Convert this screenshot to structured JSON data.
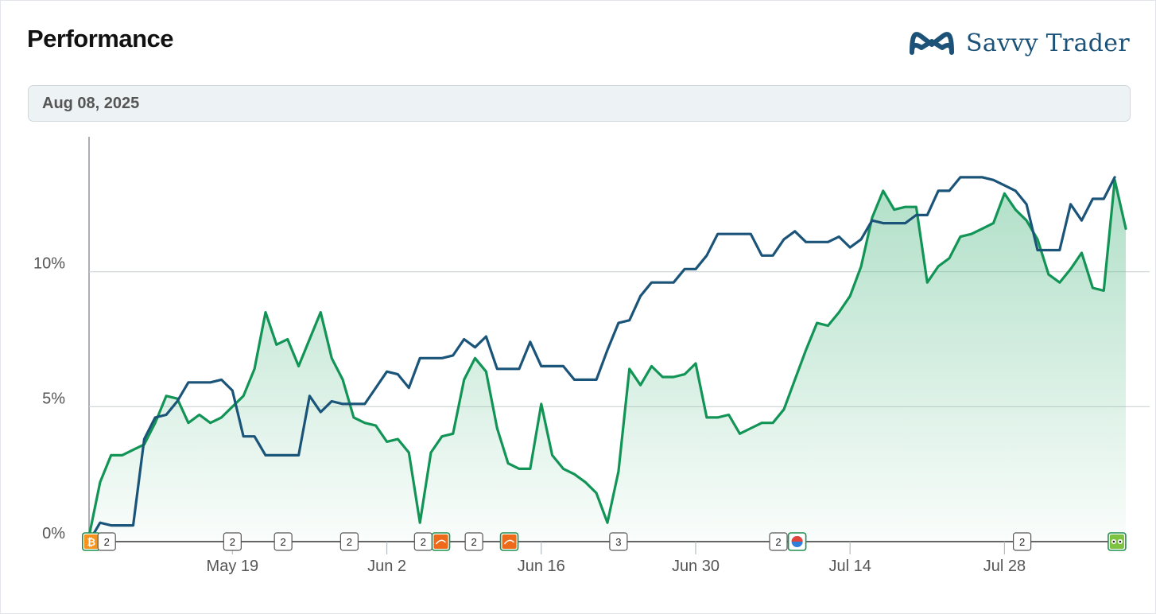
{
  "header": {
    "title": "Performance",
    "brand": "Savvy Trader"
  },
  "date_display": "Aug 08, 2025",
  "colors": {
    "portfolio": "#129456",
    "benchmark": "#1b5479",
    "fill": "#4fb883",
    "grid": "#cfd3d6",
    "brand": "#1d5278"
  },
  "chart_data": {
    "type": "line",
    "title": "",
    "xlabel": "",
    "ylabel": "",
    "x_ticks": [
      "May 19",
      "Jun 2",
      "Jun 16",
      "Jun 30",
      "Jul 14",
      "Jul 28"
    ],
    "y_ticks": [
      "0%",
      "5%",
      "10%"
    ],
    "ylim": [
      0,
      15
    ],
    "grid": true,
    "series": [
      {
        "id": "portfolio",
        "area": true,
        "points": [
          [
            0,
            0.2
          ],
          [
            1,
            2.2
          ],
          [
            2,
            3.2
          ],
          [
            3,
            3.2
          ],
          [
            4,
            3.4
          ],
          [
            5,
            3.6
          ],
          [
            6,
            4.4
          ],
          [
            7,
            5.4
          ],
          [
            8,
            5.3
          ],
          [
            9,
            4.4
          ],
          [
            10,
            4.7
          ],
          [
            11,
            4.4
          ],
          [
            12,
            4.6
          ],
          [
            13,
            5.0
          ],
          [
            14,
            5.4
          ],
          [
            15,
            6.4
          ],
          [
            16,
            8.5
          ],
          [
            17,
            7.3
          ],
          [
            18,
            7.5
          ],
          [
            19,
            6.5
          ],
          [
            20,
            7.5
          ],
          [
            21,
            8.5
          ],
          [
            22,
            6.8
          ],
          [
            23,
            6.0
          ],
          [
            24,
            4.6
          ],
          [
            25,
            4.4
          ],
          [
            26,
            4.3
          ],
          [
            27,
            3.7
          ],
          [
            28,
            3.8
          ],
          [
            29,
            3.3
          ],
          [
            30,
            0.7
          ],
          [
            31,
            3.3
          ],
          [
            32,
            3.9
          ],
          [
            33,
            4.0
          ],
          [
            34,
            6.0
          ],
          [
            35,
            6.8
          ],
          [
            36,
            6.3
          ],
          [
            37,
            4.2
          ],
          [
            38,
            2.9
          ],
          [
            39,
            2.7
          ],
          [
            40,
            2.7
          ],
          [
            41,
            5.1
          ],
          [
            42,
            3.2
          ],
          [
            43,
            2.7
          ],
          [
            44,
            2.5
          ],
          [
            45,
            2.2
          ],
          [
            46,
            1.8
          ],
          [
            47,
            0.7
          ],
          [
            48,
            2.6
          ],
          [
            49,
            6.4
          ],
          [
            50,
            5.8
          ],
          [
            51,
            6.5
          ],
          [
            52,
            6.1
          ],
          [
            53,
            6.1
          ],
          [
            54,
            6.2
          ],
          [
            55,
            6.6
          ],
          [
            56,
            4.6
          ],
          [
            57,
            4.6
          ],
          [
            58,
            4.7
          ],
          [
            59,
            4.0
          ],
          [
            60,
            4.2
          ],
          [
            61,
            4.4
          ],
          [
            62,
            4.4
          ],
          [
            63,
            4.9
          ],
          [
            64,
            6.0
          ],
          [
            65,
            7.1
          ],
          [
            66,
            8.1
          ],
          [
            67,
            8.0
          ],
          [
            68,
            8.5
          ],
          [
            69,
            9.1
          ],
          [
            70,
            10.2
          ],
          [
            71,
            12.0
          ],
          [
            72,
            13.0
          ],
          [
            73,
            12.3
          ],
          [
            74,
            12.4
          ],
          [
            75,
            12.4
          ],
          [
            76,
            9.6
          ],
          [
            77,
            10.2
          ],
          [
            78,
            10.5
          ],
          [
            79,
            11.3
          ],
          [
            80,
            11.4
          ],
          [
            81,
            11.6
          ],
          [
            82,
            11.8
          ],
          [
            83,
            12.9
          ],
          [
            84,
            12.3
          ],
          [
            85,
            11.9
          ],
          [
            86,
            11.2
          ],
          [
            87,
            9.9
          ],
          [
            88,
            9.6
          ],
          [
            89,
            10.1
          ],
          [
            90,
            10.7
          ],
          [
            91,
            9.4
          ],
          [
            92,
            9.3
          ],
          [
            93,
            13.4
          ],
          [
            94,
            11.6
          ]
        ]
      },
      {
        "id": "benchmark",
        "area": false,
        "points": [
          [
            0,
            0
          ],
          [
            1,
            0.7
          ],
          [
            2,
            0.6
          ],
          [
            3,
            0.6
          ],
          [
            4,
            0.6
          ],
          [
            5,
            3.8
          ],
          [
            6,
            4.6
          ],
          [
            7,
            4.7
          ],
          [
            8,
            5.2
          ],
          [
            9,
            5.9
          ],
          [
            10,
            5.9
          ],
          [
            11,
            5.9
          ],
          [
            12,
            6.0
          ],
          [
            13,
            5.6
          ],
          [
            14,
            3.9
          ],
          [
            15,
            3.9
          ],
          [
            16,
            3.2
          ],
          [
            17,
            3.2
          ],
          [
            18,
            3.2
          ],
          [
            19,
            3.2
          ],
          [
            20,
            5.4
          ],
          [
            21,
            4.8
          ],
          [
            22,
            5.2
          ],
          [
            23,
            5.1
          ],
          [
            24,
            5.1
          ],
          [
            25,
            5.1
          ],
          [
            26,
            5.7
          ],
          [
            27,
            6.3
          ],
          [
            28,
            6.2
          ],
          [
            29,
            5.7
          ],
          [
            30,
            6.8
          ],
          [
            31,
            6.8
          ],
          [
            32,
            6.8
          ],
          [
            33,
            6.9
          ],
          [
            34,
            7.5
          ],
          [
            35,
            7.2
          ],
          [
            36,
            7.6
          ],
          [
            37,
            6.4
          ],
          [
            38,
            6.4
          ],
          [
            39,
            6.4
          ],
          [
            40,
            7.4
          ],
          [
            41,
            6.5
          ],
          [
            42,
            6.5
          ],
          [
            43,
            6.5
          ],
          [
            44,
            6.0
          ],
          [
            45,
            6.0
          ],
          [
            46,
            6.0
          ],
          [
            47,
            7.1
          ],
          [
            48,
            8.1
          ],
          [
            49,
            8.2
          ],
          [
            50,
            9.1
          ],
          [
            51,
            9.6
          ],
          [
            52,
            9.6
          ],
          [
            53,
            9.6
          ],
          [
            54,
            10.1
          ],
          [
            55,
            10.1
          ],
          [
            56,
            10.6
          ],
          [
            57,
            11.4
          ],
          [
            58,
            11.4
          ],
          [
            59,
            11.4
          ],
          [
            60,
            11.4
          ],
          [
            61,
            10.6
          ],
          [
            62,
            10.6
          ],
          [
            63,
            11.2
          ],
          [
            64,
            11.5
          ],
          [
            65,
            11.1
          ],
          [
            66,
            11.1
          ],
          [
            67,
            11.1
          ],
          [
            68,
            11.3
          ],
          [
            69,
            10.9
          ],
          [
            70,
            11.2
          ],
          [
            71,
            11.9
          ],
          [
            72,
            11.8
          ],
          [
            73,
            11.8
          ],
          [
            74,
            11.8
          ],
          [
            75,
            12.1
          ],
          [
            76,
            12.1
          ],
          [
            77,
            13.0
          ],
          [
            78,
            13.0
          ],
          [
            79,
            13.5
          ],
          [
            80,
            13.5
          ],
          [
            81,
            13.5
          ],
          [
            82,
            13.4
          ],
          [
            83,
            13.2
          ],
          [
            84,
            13.0
          ],
          [
            85,
            12.5
          ],
          [
            86,
            10.8
          ],
          [
            87,
            10.8
          ],
          [
            88,
            10.8
          ],
          [
            89,
            12.5
          ],
          [
            90,
            11.9
          ],
          [
            91,
            12.7
          ],
          [
            92,
            12.7
          ],
          [
            93,
            13.5
          ]
        ]
      }
    ],
    "event_markers": [
      {
        "x": 0.2,
        "icon": "bitcoin-icon"
      },
      {
        "x": 1.6,
        "label": "2"
      },
      {
        "x": 13.0,
        "label": "2"
      },
      {
        "x": 17.6,
        "label": "2"
      },
      {
        "x": 23.6,
        "label": "2"
      },
      {
        "x": 30.3,
        "label": "2"
      },
      {
        "x": 31.9,
        "icon": "orange-logo-icon"
      },
      {
        "x": 34.9,
        "label": "2"
      },
      {
        "x": 38.1,
        "icon": "orange-logo-icon"
      },
      {
        "x": 48.0,
        "label": "3"
      },
      {
        "x": 62.5,
        "label": "2"
      },
      {
        "x": 64.2,
        "icon": "globe-logo-icon"
      },
      {
        "x": 84.6,
        "label": "2"
      },
      {
        "x": 93.2,
        "icon": "owl-logo-icon"
      }
    ]
  }
}
